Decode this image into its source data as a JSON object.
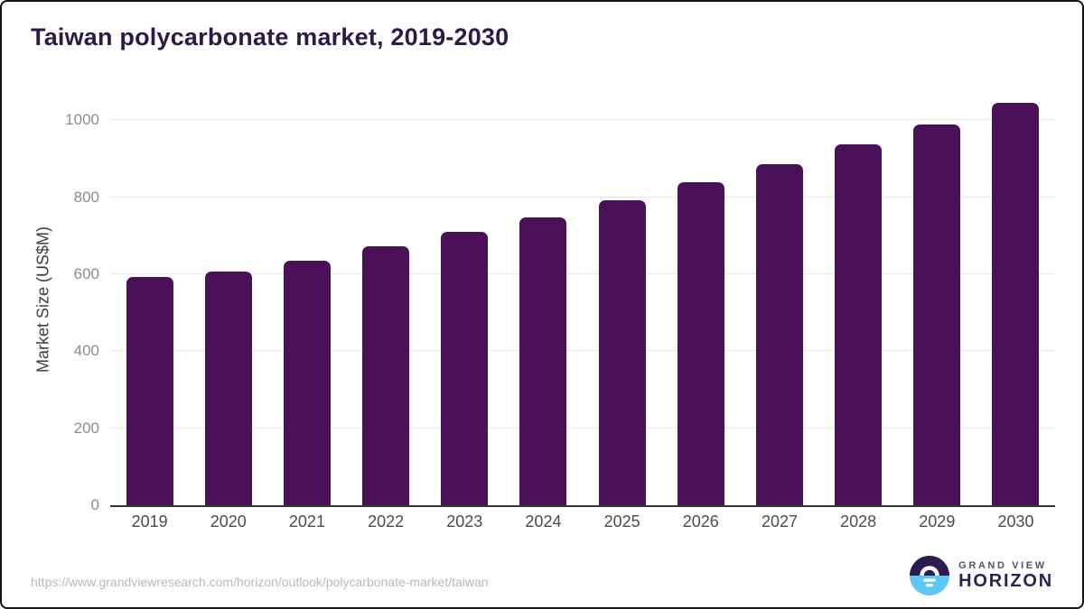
{
  "page": {
    "title": "Taiwan polycarbonate market, 2019-2030"
  },
  "chart_data": {
    "type": "bar",
    "title": "Taiwan polycarbonate market, 2019-2030",
    "categories": [
      "2019",
      "2020",
      "2021",
      "2022",
      "2023",
      "2024",
      "2025",
      "2026",
      "2027",
      "2028",
      "2029",
      "2030"
    ],
    "values": [
      594,
      608,
      636,
      673,
      711,
      748,
      791,
      838,
      885,
      937,
      989,
      1046
    ],
    "xlabel": "",
    "ylabel": "Market Size (US$M)",
    "yticks": [
      0,
      200,
      400,
      600,
      800,
      1000
    ],
    "ylim": [
      0,
      1078
    ],
    "grid": "horizontal",
    "legend": "none",
    "bar_color": "#4a1159"
  },
  "footer": {
    "source_url": "https://www.grandviewresearch.com/horizon/outlook/polycarbonate-market/taiwan",
    "logo": {
      "top": "GRAND VIEW",
      "bottom": "HORIZON"
    }
  },
  "colors": {
    "title": "#2e1a47",
    "bar": "#4a1159",
    "gridline": "#e9e9eb",
    "axis": "#333338",
    "ytick_label": "#8c8c8c",
    "xtick_label": "#4c4c4c",
    "axis_title": "#3d3d3d",
    "url": "#b9b9b9",
    "logo_dark": "#2c1b4d",
    "logo_blue": "#5bc8f5",
    "logo_top_text": "#55506b",
    "logo_bottom_text": "#2d2153"
  }
}
